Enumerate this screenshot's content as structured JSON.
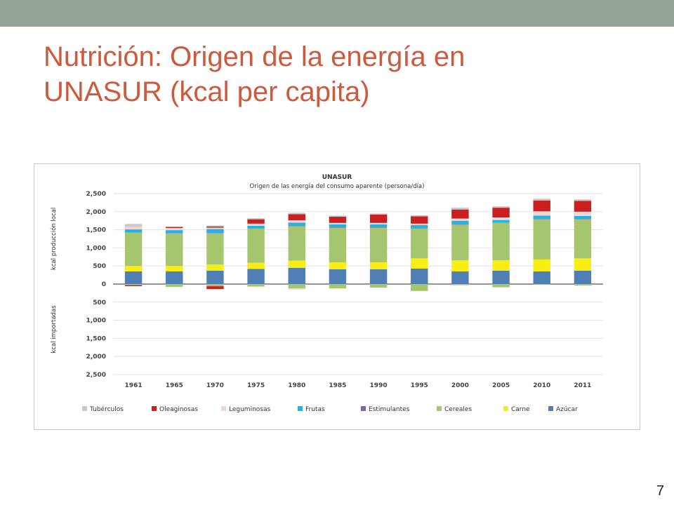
{
  "slide": {
    "title_line1": "Nutrición: Origen de la energía en",
    "title_line2": "UNASUR (kcal per capita)",
    "page_number": "7",
    "colors": {
      "top_bar": "#93a395",
      "title": "#cc5b3d"
    }
  },
  "chart_data": {
    "type": "bar",
    "stacked": true,
    "title": "UNASUR",
    "subtitle": "Origen de las energía del consumo aparente (persona/día)",
    "ylabel_top": "kcal producción local",
    "ylabel_bottom": "kcal importadas",
    "ylim": [
      -2500,
      2500
    ],
    "yticks": [
      2500,
      2000,
      1500,
      1000,
      500,
      0,
      -500,
      -1000,
      -1500,
      -2000,
      -2500
    ],
    "ytick_labels": [
      "2,500",
      "2,000",
      "1,500",
      "1,000",
      "500",
      "0",
      "500",
      "1,000",
      "1,500",
      "2,000",
      "2,500"
    ],
    "grid": true,
    "legend_position": "bottom",
    "categories": [
      "1961",
      "1965",
      "1970",
      "1975",
      "1980",
      "1985",
      "1990",
      "1995",
      "2000",
      "2005",
      "2010",
      "2011"
    ],
    "series": [
      {
        "name": "Azúcar",
        "color": "#4f7fb4",
        "values": [
          350,
          350,
          370,
          420,
          450,
          410,
          410,
          430,
          350,
          370,
          350,
          370
        ],
        "imports": [
          0,
          0,
          0,
          0,
          0,
          0,
          0,
          0,
          0,
          0,
          0,
          0
        ]
      },
      {
        "name": "Carne",
        "color": "#f9ee14",
        "values": [
          150,
          150,
          170,
          170,
          200,
          190,
          190,
          280,
          310,
          290,
          330,
          340
        ],
        "imports": [
          0,
          0,
          0,
          0,
          0,
          0,
          0,
          0,
          0,
          0,
          0,
          0
        ]
      },
      {
        "name": "Cereales",
        "color": "#a5c56f",
        "values": [
          920,
          900,
          860,
          950,
          950,
          960,
          960,
          830,
          980,
          1030,
          1110,
          1080
        ],
        "imports": [
          -30,
          -80,
          -60,
          -70,
          -120,
          -120,
          -100,
          -190,
          -30,
          -90,
          -20,
          -40
        ]
      },
      {
        "name": "Estimulantes",
        "color": "#8064a2",
        "values": [
          10,
          10,
          10,
          10,
          10,
          10,
          10,
          10,
          10,
          10,
          10,
          10
        ],
        "imports": [
          0,
          0,
          0,
          0,
          0,
          0,
          0,
          0,
          0,
          0,
          0,
          0
        ]
      },
      {
        "name": "Frutas",
        "color": "#1fb3e6",
        "values": [
          80,
          80,
          110,
          60,
          90,
          80,
          80,
          80,
          100,
          70,
          90,
          80
        ],
        "imports": [
          0,
          0,
          0,
          0,
          0,
          0,
          0,
          0,
          0,
          0,
          0,
          0
        ]
      },
      {
        "name": "Leguminosas",
        "color": "#f2d6d6",
        "values": [
          70,
          60,
          40,
          60,
          60,
          40,
          40,
          40,
          60,
          70,
          120,
          120
        ],
        "imports": [
          0,
          0,
          0,
          0,
          -30,
          0,
          0,
          0,
          0,
          0,
          0,
          0
        ]
      },
      {
        "name": "Oleaginosas",
        "color": "#cc1f1f",
        "values": [
          0,
          30,
          30,
          120,
          170,
          170,
          230,
          200,
          250,
          270,
          300,
          300
        ],
        "imports": [
          -30,
          0,
          -80,
          0,
          0,
          0,
          0,
          0,
          0,
          0,
          0,
          0
        ]
      },
      {
        "name": "Tubérculos",
        "color": "#c8c8c8",
        "values": [
          80,
          0,
          30,
          30,
          40,
          30,
          30,
          30,
          50,
          40,
          50,
          40
        ],
        "imports": [
          0,
          0,
          0,
          0,
          0,
          0,
          0,
          0,
          0,
          0,
          0,
          0
        ]
      }
    ],
    "legend_order": [
      "Tubérculos",
      "Oleaginosas",
      "Leguminosas",
      "Frutas",
      "Estimulantes",
      "Cereales",
      "Carne",
      "Azúcar"
    ]
  }
}
